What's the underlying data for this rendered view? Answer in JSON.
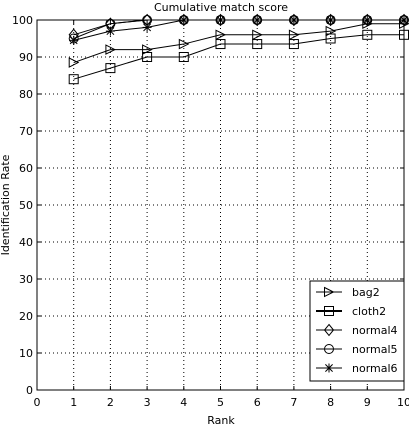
{
  "chart_data": {
    "type": "line",
    "title": "Cumulative match score",
    "xlabel": "Rank",
    "ylabel": "Identification Rate",
    "xlim": [
      0,
      10
    ],
    "ylim": [
      0,
      100
    ],
    "x_ticks": [
      0,
      1,
      2,
      3,
      4,
      5,
      6,
      7,
      8,
      9,
      10
    ],
    "y_ticks": [
      0,
      10,
      20,
      30,
      40,
      50,
      60,
      70,
      80,
      90,
      100
    ],
    "grid": "dotted",
    "legend_position": "bottom-right",
    "x": [
      1,
      2,
      3,
      4,
      5,
      6,
      7,
      8,
      9,
      10
    ],
    "series": [
      {
        "name": "bag2",
        "marker": "triangle-right",
        "values": [
          88.5,
          92,
          92,
          93.5,
          96,
          96,
          96,
          97,
          99,
          99
        ]
      },
      {
        "name": "cloth2",
        "marker": "square",
        "values": [
          84,
          87,
          90,
          90,
          93.5,
          93.5,
          93.5,
          95,
          96,
          96
        ]
      },
      {
        "name": "normal4",
        "marker": "diamond",
        "values": [
          96,
          99,
          100,
          100,
          100,
          100,
          100,
          100,
          100,
          100
        ]
      },
      {
        "name": "normal5",
        "marker": "circle",
        "values": [
          95,
          99,
          100,
          100,
          100,
          100,
          100,
          100,
          100,
          100
        ]
      },
      {
        "name": "normal6",
        "marker": "star",
        "values": [
          94.5,
          97,
          98,
          100,
          100,
          100,
          100,
          100,
          100,
          100
        ]
      }
    ]
  }
}
